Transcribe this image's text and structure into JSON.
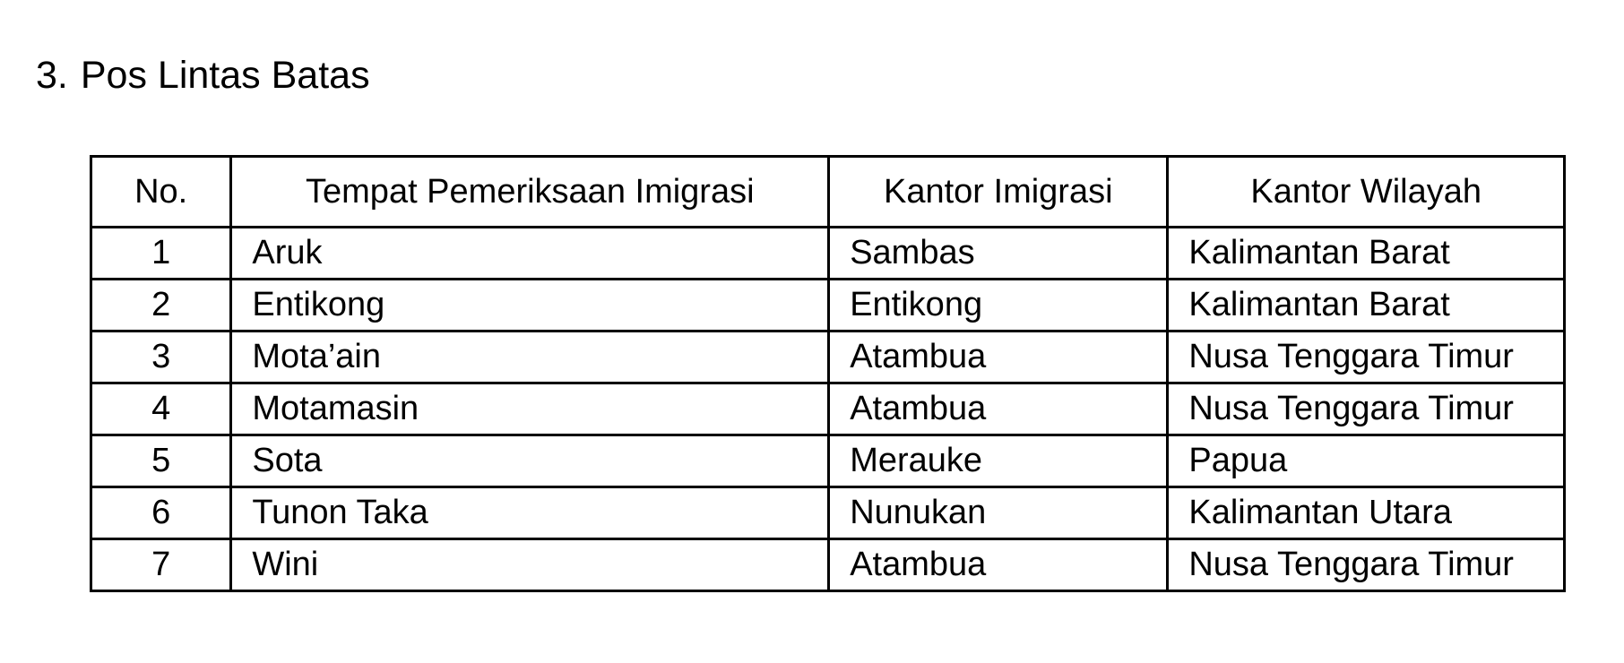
{
  "section": {
    "number": "3.",
    "title": "Pos Lintas Batas"
  },
  "table": {
    "headers": [
      "No.",
      "Tempat Pemeriksaan Imigrasi",
      "Kantor Imigrasi",
      "Kantor Wilayah"
    ],
    "rows": [
      [
        "1",
        "Aruk",
        "Sambas",
        "Kalimantan Barat"
      ],
      [
        "2",
        "Entikong",
        "Entikong",
        "Kalimantan Barat"
      ],
      [
        "3",
        "Mota’ain",
        "Atambua",
        "Nusa Tenggara Timur"
      ],
      [
        "4",
        "Motamasin",
        "Atambua",
        "Nusa Tenggara Timur"
      ],
      [
        "5",
        "Sota",
        "Merauke",
        "Papua"
      ],
      [
        "6",
        "Tunon Taka",
        "Nunukan",
        "Kalimantan Utara"
      ],
      [
        "7",
        "Wini",
        "Atambua",
        "Nusa Tenggara Timur"
      ]
    ]
  }
}
